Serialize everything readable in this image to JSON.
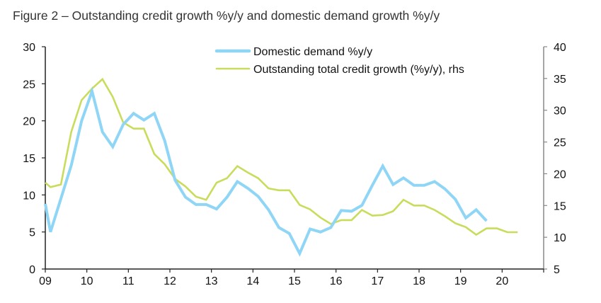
{
  "chart_data": {
    "type": "line",
    "title": "Figure 2 – Outstanding credit growth %y/y and domestic demand growth %y/y",
    "x_tick_labels": [
      "09",
      "10",
      "11",
      "12",
      "13",
      "14",
      "15",
      "16",
      "17",
      "18",
      "19",
      "20"
    ],
    "x_range": [
      2009,
      2021
    ],
    "y_left": {
      "range": [
        0,
        30
      ],
      "ticks": [
        0,
        5,
        10,
        15,
        20,
        25,
        30
      ]
    },
    "y_right": {
      "range": [
        5,
        40
      ],
      "ticks": [
        5,
        10,
        15,
        20,
        25,
        30,
        35,
        40
      ]
    },
    "grid": false,
    "legend_placement": "top-center",
    "colors": {
      "domestic": "#8fd6f6",
      "credit": "#c9dc5c",
      "axis_left": "#222222",
      "axis_right": "#888888"
    },
    "series": [
      {
        "name": "Domestic demand %y/y",
        "axis": "left",
        "x": [
          "2008Q4",
          "2009Q1",
          "2009Q2",
          "2009Q3",
          "2009Q4",
          "2010Q1",
          "2010Q2",
          "2010Q3",
          "2010Q4",
          "2011Q1",
          "2011Q2",
          "2011Q3",
          "2011Q4",
          "2012Q1",
          "2012Q2",
          "2012Q3",
          "2012Q4",
          "2013Q1",
          "2013Q2",
          "2013Q3",
          "2013Q4",
          "2014Q1",
          "2014Q2",
          "2014Q3",
          "2014Q4",
          "2015Q1",
          "2015Q2",
          "2015Q3",
          "2015Q4",
          "2016Q1",
          "2016Q2",
          "2016Q3",
          "2016Q4",
          "2017Q1",
          "2017Q2",
          "2017Q3",
          "2017Q4",
          "2018Q1",
          "2018Q2",
          "2018Q3",
          "2018Q4",
          "2019Q1",
          "2019Q2",
          "2019Q3"
        ],
        "values": [
          8.8,
          5.0,
          9.5,
          14.0,
          20.0,
          24.0,
          18.5,
          16.5,
          19.5,
          21.0,
          20.1,
          21.0,
          17.3,
          12.0,
          9.7,
          8.7,
          8.7,
          8.1,
          9.7,
          11.8,
          10.9,
          9.8,
          8.0,
          5.6,
          4.8,
          2.1,
          5.4,
          5.0,
          5.6,
          7.9,
          7.8,
          8.6,
          11.3,
          13.9,
          11.4,
          12.3,
          11.3,
          11.3,
          11.8,
          10.8,
          9.4,
          6.9,
          8.0,
          6.5
        ]
      },
      {
        "name": "Outstanding total credit growth (%y/y), rhs",
        "axis": "right",
        "x": [
          "2008Q4",
          "2009Q1",
          "2009Q2",
          "2009Q3",
          "2009Q4",
          "2010Q1",
          "2010Q2",
          "2010Q3",
          "2010Q4",
          "2011Q1",
          "2011Q2",
          "2011Q3",
          "2011Q4",
          "2012Q1",
          "2012Q2",
          "2012Q3",
          "2012Q4",
          "2013Q1",
          "2013Q2",
          "2013Q3",
          "2013Q4",
          "2014Q1",
          "2014Q2",
          "2014Q3",
          "2014Q4",
          "2015Q1",
          "2015Q2",
          "2015Q3",
          "2015Q4",
          "2016Q1",
          "2016Q2",
          "2016Q3",
          "2016Q4",
          "2017Q1",
          "2017Q2",
          "2017Q3",
          "2017Q4",
          "2018Q1",
          "2018Q2",
          "2018Q3",
          "2018Q4",
          "2019Q1",
          "2019Q2",
          "2019Q3",
          "2019Q4",
          "2020Q1",
          "2020Q2"
        ],
        "values": [
          18.6,
          17.9,
          18.3,
          26.6,
          31.6,
          33.4,
          34.9,
          32.1,
          28.1,
          27.1,
          27.1,
          23.1,
          21.5,
          19.2,
          18.0,
          16.4,
          15.9,
          18.6,
          19.3,
          21.2,
          20.2,
          19.3,
          17.7,
          17.4,
          17.4,
          15.1,
          14.4,
          13.1,
          12.1,
          12.7,
          12.7,
          14.3,
          13.4,
          13.5,
          14.1,
          15.9,
          15.0,
          15.0,
          14.3,
          13.3,
          12.2,
          11.6,
          10.4,
          11.4,
          11.4,
          10.8,
          10.8
        ]
      }
    ]
  }
}
